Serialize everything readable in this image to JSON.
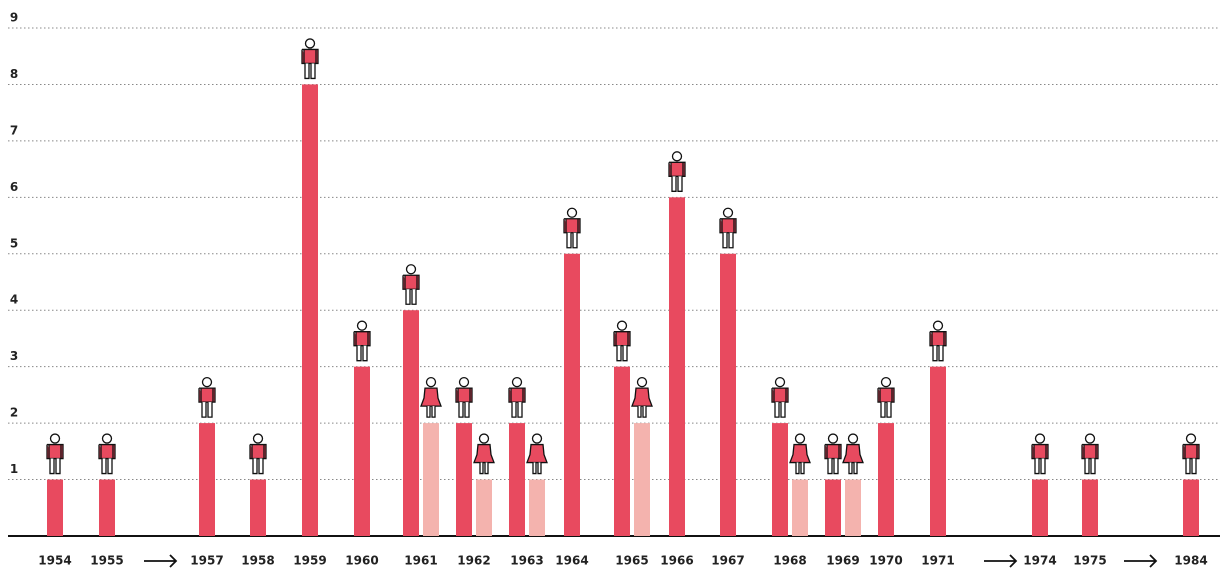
{
  "chart_data": {
    "type": "bar",
    "categories": [
      "1954",
      "1955",
      null,
      "1957",
      "1958",
      "1959",
      "1960",
      "1961",
      "1962",
      "1963",
      "1964",
      "1965",
      "1966",
      "1967",
      "1968",
      "1969",
      "1970",
      "1971",
      null,
      "1974",
      "1975",
      null,
      "1984"
    ],
    "series": [
      {
        "color": "#e84a5f",
        "values": [
          1,
          1,
          null,
          2,
          1,
          8,
          3,
          4,
          2,
          2,
          5,
          3,
          6,
          5,
          2,
          1,
          2,
          3,
          null,
          1,
          1,
          null,
          1
        ]
      },
      {
        "color": "#f4b3ae",
        "values": [
          null,
          null,
          null,
          null,
          null,
          null,
          null,
          2,
          1,
          1,
          null,
          2,
          null,
          null,
          1,
          1,
          null,
          null,
          null,
          null,
          null,
          null,
          null
        ]
      }
    ],
    "ylim": [
      0,
      9
    ],
    "yticks": [
      1,
      2,
      3,
      4,
      5,
      6,
      7,
      8,
      9
    ],
    "grid": true
  }
}
